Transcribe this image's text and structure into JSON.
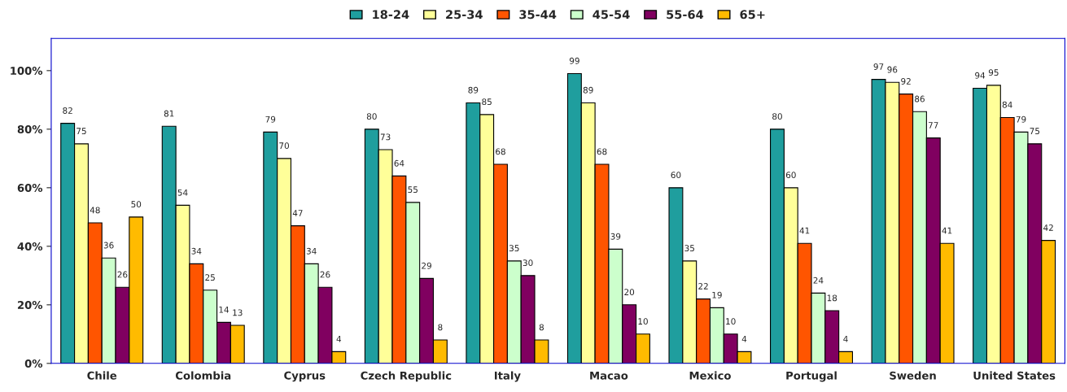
{
  "chart_data": {
    "type": "bar",
    "categories": [
      "Chile",
      "Colombia",
      "Cyprus",
      "Czech Republic",
      "Italy",
      "Macao",
      "Mexico",
      "Portugal",
      "Sweden",
      "United States"
    ],
    "series": [
      {
        "name": "18-24",
        "color": "#1f9e9e",
        "values": [
          82,
          81,
          79,
          80,
          89,
          99,
          60,
          80,
          97,
          94
        ]
      },
      {
        "name": "25-34",
        "color": "#ffff99",
        "values": [
          75,
          54,
          70,
          73,
          85,
          89,
          35,
          60,
          96,
          95
        ]
      },
      {
        "name": "35-44",
        "color": "#ff5500",
        "values": [
          48,
          34,
          47,
          64,
          68,
          68,
          22,
          41,
          92,
          84
        ]
      },
      {
        "name": "45-54",
        "color": "#ccffcc",
        "values": [
          36,
          25,
          34,
          55,
          35,
          39,
          19,
          24,
          86,
          79
        ]
      },
      {
        "name": "55-64",
        "color": "#800060",
        "values": [
          26,
          14,
          26,
          29,
          30,
          20,
          10,
          18,
          77,
          75
        ]
      },
      {
        "name": "65+",
        "color": "#ffbb00",
        "values": [
          50,
          13,
          4,
          8,
          8,
          10,
          4,
          4,
          41,
          42
        ]
      }
    ],
    "ylim": [
      0,
      111
    ],
    "yticks": [
      {
        "value": 0,
        "label": "0%"
      },
      {
        "value": 20,
        "label": "20%"
      },
      {
        "value": 40,
        "label": "40%"
      },
      {
        "value": 60,
        "label": "60%"
      },
      {
        "value": 80,
        "label": "80%"
      },
      {
        "value": 100,
        "label": "100%"
      }
    ],
    "data_labels": true,
    "grid": false,
    "legend": "top"
  }
}
